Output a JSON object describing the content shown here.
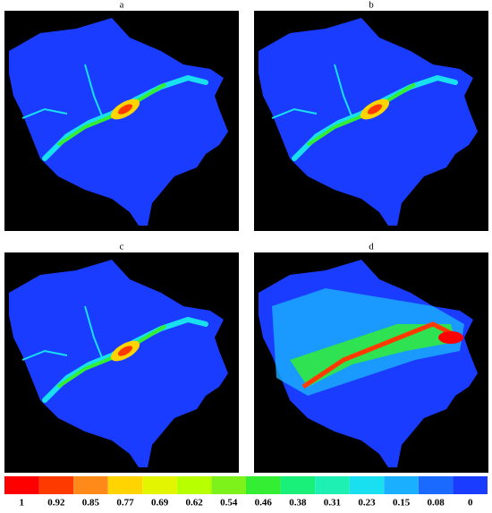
{
  "panels": [
    {
      "label": "a"
    },
    {
      "label": "b"
    },
    {
      "label": "c"
    },
    {
      "label": "d"
    }
  ],
  "colorbar": {
    "labels": [
      1,
      0.92,
      0.85,
      0.77,
      0.69,
      0.62,
      0.54,
      0.46,
      0.38,
      0.31,
      0.23,
      0.15,
      0.08,
      0
    ],
    "colors": [
      "#ff0000",
      "#ff3a00",
      "#ff8a1a",
      "#ffd400",
      "#e4f500",
      "#b8ff00",
      "#7cf21a",
      "#33ee33",
      "#19f07a",
      "#1ef0b4",
      "#19e0f0",
      "#1ab0ff",
      "#1a6aff",
      "#1a3cff"
    ]
  }
}
